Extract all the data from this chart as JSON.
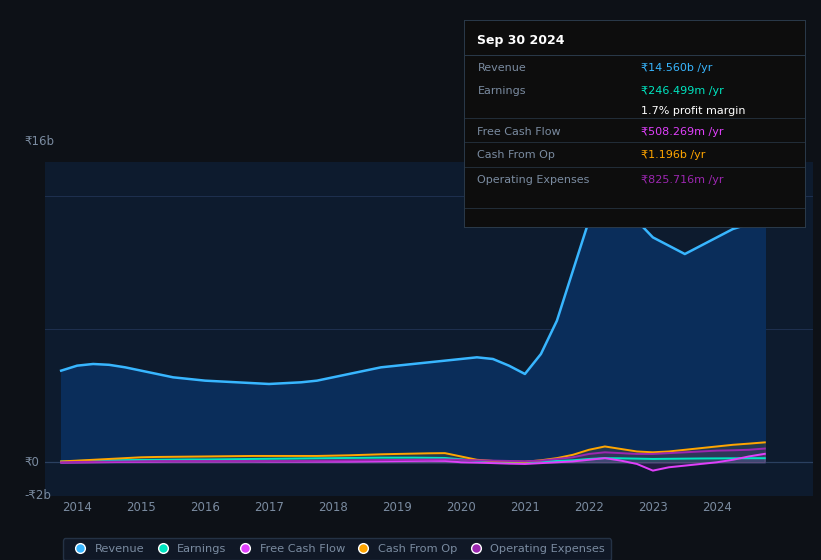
{
  "bg_color": "#0d1117",
  "plot_bg_color": "#0d1b2e",
  "ylim": [
    -2000000000.0,
    18000000000.0
  ],
  "xlim": [
    2013.5,
    2025.5
  ],
  "x_ticks": [
    2014,
    2015,
    2016,
    2017,
    2018,
    2019,
    2020,
    2021,
    2022,
    2023,
    2024
  ],
  "y_label_top": "₹16b",
  "y_label_zero": "₹0",
  "y_label_neg": "-₹2b",
  "revenue_color": "#38b6ff",
  "earnings_color": "#00e5c0",
  "fcf_color": "#e040fb",
  "cashop_color": "#ffa500",
  "opex_color": "#9c27b0",
  "tooltip": {
    "title": "Sep 30 2024",
    "revenue_label": "Revenue",
    "revenue_value": "₹14.560b /yr",
    "revenue_color": "#38b6ff",
    "earnings_label": "Earnings",
    "earnings_value": "₹246.499m /yr",
    "earnings_color": "#00e5c0",
    "margin_value": "1.7% profit margin",
    "fcf_label": "Free Cash Flow",
    "fcf_value": "₹508.269m /yr",
    "fcf_color": "#e040fb",
    "cashop_label": "Cash From Op",
    "cashop_value": "₹1.196b /yr",
    "cashop_color": "#ffa500",
    "opex_label": "Operating Expenses",
    "opex_value": "₹825.716m /yr",
    "opex_color": "#9c27b0"
  },
  "revenue_x": [
    2013.75,
    2014.0,
    2014.25,
    2014.5,
    2014.75,
    2015.0,
    2015.25,
    2015.5,
    2015.75,
    2016.0,
    2016.25,
    2016.5,
    2016.75,
    2017.0,
    2017.25,
    2017.5,
    2017.75,
    2018.0,
    2018.25,
    2018.5,
    2018.75,
    2019.0,
    2019.25,
    2019.5,
    2019.75,
    2020.0,
    2020.25,
    2020.5,
    2020.75,
    2021.0,
    2021.25,
    2021.5,
    2021.75,
    2022.0,
    2022.25,
    2022.5,
    2022.75,
    2023.0,
    2023.25,
    2023.5,
    2023.75,
    2024.0,
    2024.25,
    2024.5,
    2024.75
  ],
  "revenue_y": [
    5500000000.0,
    5800000000.0,
    5900000000.0,
    5850000000.0,
    5700000000.0,
    5500000000.0,
    5300000000.0,
    5100000000.0,
    5000000000.0,
    4900000000.0,
    4850000000.0,
    4800000000.0,
    4750000000.0,
    4700000000.0,
    4750000000.0,
    4800000000.0,
    4900000000.0,
    5100000000.0,
    5300000000.0,
    5500000000.0,
    5700000000.0,
    5800000000.0,
    5900000000.0,
    6000000000.0,
    6100000000.0,
    6200000000.0,
    6300000000.0,
    6200000000.0,
    5800000000.0,
    5300000000.0,
    6500000000.0,
    8500000000.0,
    11500000000.0,
    14500000000.0,
    16000000000.0,
    15500000000.0,
    14500000000.0,
    13500000000.0,
    13000000000.0,
    12500000000.0,
    13000000000.0,
    13500000000.0,
    14000000000.0,
    14300000000.0,
    14560000000.0
  ],
  "earnings_x": [
    2013.75,
    2014.0,
    2014.25,
    2014.5,
    2014.75,
    2015.0,
    2015.25,
    2015.5,
    2015.75,
    2016.0,
    2016.25,
    2016.5,
    2016.75,
    2017.0,
    2017.25,
    2017.5,
    2017.75,
    2018.0,
    2018.25,
    2018.5,
    2018.75,
    2019.0,
    2019.25,
    2019.5,
    2019.75,
    2020.0,
    2020.25,
    2020.5,
    2020.75,
    2021.0,
    2021.25,
    2021.5,
    2021.75,
    2022.0,
    2022.25,
    2022.5,
    2022.75,
    2023.0,
    2023.25,
    2023.5,
    2023.75,
    2024.0,
    2024.25,
    2024.5,
    2024.75
  ],
  "earnings_y": [
    50000000.0,
    80000000.0,
    100000000.0,
    120000000.0,
    130000000.0,
    140000000.0,
    150000000.0,
    160000000.0,
    170000000.0,
    170000000.0,
    180000000.0,
    190000000.0,
    200000000.0,
    210000000.0,
    220000000.0,
    230000000.0,
    240000000.0,
    250000000.0,
    260000000.0,
    270000000.0,
    280000000.0,
    280000000.0,
    280000000.0,
    270000000.0,
    260000000.0,
    180000000.0,
    100000000.0,
    50000000.0,
    20000000.0,
    10000000.0,
    50000000.0,
    80000000.0,
    120000000.0,
    200000000.0,
    250000000.0,
    240000000.0,
    220000000.0,
    200000000.0,
    210000000.0,
    220000000.0,
    230000000.0,
    235000000.0,
    240000000.0,
    245000000.0,
    246500000.0
  ],
  "fcf_x": [
    2013.75,
    2014.0,
    2014.25,
    2014.5,
    2014.75,
    2015.0,
    2015.25,
    2015.5,
    2015.75,
    2016.0,
    2016.25,
    2016.5,
    2016.75,
    2017.0,
    2017.25,
    2017.5,
    2017.75,
    2018.0,
    2018.25,
    2018.5,
    2018.75,
    2019.0,
    2019.25,
    2019.5,
    2019.75,
    2020.0,
    2020.25,
    2020.5,
    2020.75,
    2021.0,
    2021.25,
    2021.5,
    2021.75,
    2022.0,
    2022.25,
    2022.5,
    2022.75,
    2023.0,
    2023.25,
    2023.5,
    2023.75,
    2024.0,
    2024.25,
    2024.5,
    2024.75
  ],
  "fcf_y": [
    -20000000.0,
    -10000000.0,
    0.0,
    10000000.0,
    20000000.0,
    30000000.0,
    40000000.0,
    50000000.0,
    50000000.0,
    50000000.0,
    50000000.0,
    50000000.0,
    50000000.0,
    40000000.0,
    40000000.0,
    40000000.0,
    40000000.0,
    40000000.0,
    40000000.0,
    50000000.0,
    60000000.0,
    70000000.0,
    80000000.0,
    90000000.0,
    80000000.0,
    0.0,
    -20000000.0,
    -50000000.0,
    -80000000.0,
    -100000000.0,
    -50000000.0,
    0.0,
    50000000.0,
    150000000.0,
    250000000.0,
    100000000.0,
    -100000000.0,
    -500000000.0,
    -300000000.0,
    -200000000.0,
    -100000000.0,
    0.0,
    150000000.0,
    350000000.0,
    508000000.0
  ],
  "cashop_x": [
    2013.75,
    2014.0,
    2014.25,
    2014.5,
    2014.75,
    2015.0,
    2015.25,
    2015.5,
    2015.75,
    2016.0,
    2016.25,
    2016.5,
    2016.75,
    2017.0,
    2017.25,
    2017.5,
    2017.75,
    2018.0,
    2018.25,
    2018.5,
    2018.75,
    2019.0,
    2019.25,
    2019.5,
    2019.75,
    2020.0,
    2020.25,
    2020.5,
    2020.75,
    2021.0,
    2021.25,
    2021.5,
    2021.75,
    2022.0,
    2022.25,
    2022.5,
    2022.75,
    2023.0,
    2023.25,
    2023.5,
    2023.75,
    2024.0,
    2024.25,
    2024.5,
    2024.75
  ],
  "cashop_y": [
    50000000.0,
    100000000.0,
    150000000.0,
    200000000.0,
    250000000.0,
    300000000.0,
    320000000.0,
    330000000.0,
    340000000.0,
    350000000.0,
    360000000.0,
    370000000.0,
    380000000.0,
    380000000.0,
    380000000.0,
    380000000.0,
    380000000.0,
    400000000.0,
    420000000.0,
    450000000.0,
    480000000.0,
    500000000.0,
    520000000.0,
    540000000.0,
    550000000.0,
    350000000.0,
    150000000.0,
    80000000.0,
    50000000.0,
    30000000.0,
    120000000.0,
    250000000.0,
    450000000.0,
    750000000.0,
    950000000.0,
    800000000.0,
    650000000.0,
    600000000.0,
    650000000.0,
    750000000.0,
    850000000.0,
    950000000.0,
    1050000000.0,
    1120000000.0,
    1196000000.0
  ],
  "opex_x": [
    2013.75,
    2014.0,
    2014.25,
    2014.5,
    2014.75,
    2015.0,
    2015.25,
    2015.5,
    2015.75,
    2016.0,
    2016.25,
    2016.5,
    2016.75,
    2017.0,
    2017.25,
    2017.5,
    2017.75,
    2018.0,
    2018.25,
    2018.5,
    2018.75,
    2019.0,
    2019.25,
    2019.5,
    2019.75,
    2020.0,
    2020.25,
    2020.5,
    2020.75,
    2021.0,
    2021.25,
    2021.5,
    2021.75,
    2022.0,
    2022.25,
    2022.5,
    2022.75,
    2023.0,
    2023.25,
    2023.5,
    2023.75,
    2024.0,
    2024.25,
    2024.5,
    2024.75
  ],
  "opex_y": [
    0.0,
    20000000.0,
    30000000.0,
    40000000.0,
    50000000.0,
    60000000.0,
    70000000.0,
    70000000.0,
    70000000.0,
    70000000.0,
    70000000.0,
    70000000.0,
    70000000.0,
    70000000.0,
    70000000.0,
    80000000.0,
    90000000.0,
    100000000.0,
    110000000.0,
    120000000.0,
    130000000.0,
    140000000.0,
    150000000.0,
    160000000.0,
    170000000.0,
    150000000.0,
    120000000.0,
    100000000.0,
    80000000.0,
    60000000.0,
    100000000.0,
    200000000.0,
    300000000.0,
    500000000.0,
    600000000.0,
    550000000.0,
    500000000.0,
    500000000.0,
    550000000.0,
    600000000.0,
    650000000.0,
    700000000.0,
    720000000.0,
    750000000.0,
    825700000.0
  ]
}
